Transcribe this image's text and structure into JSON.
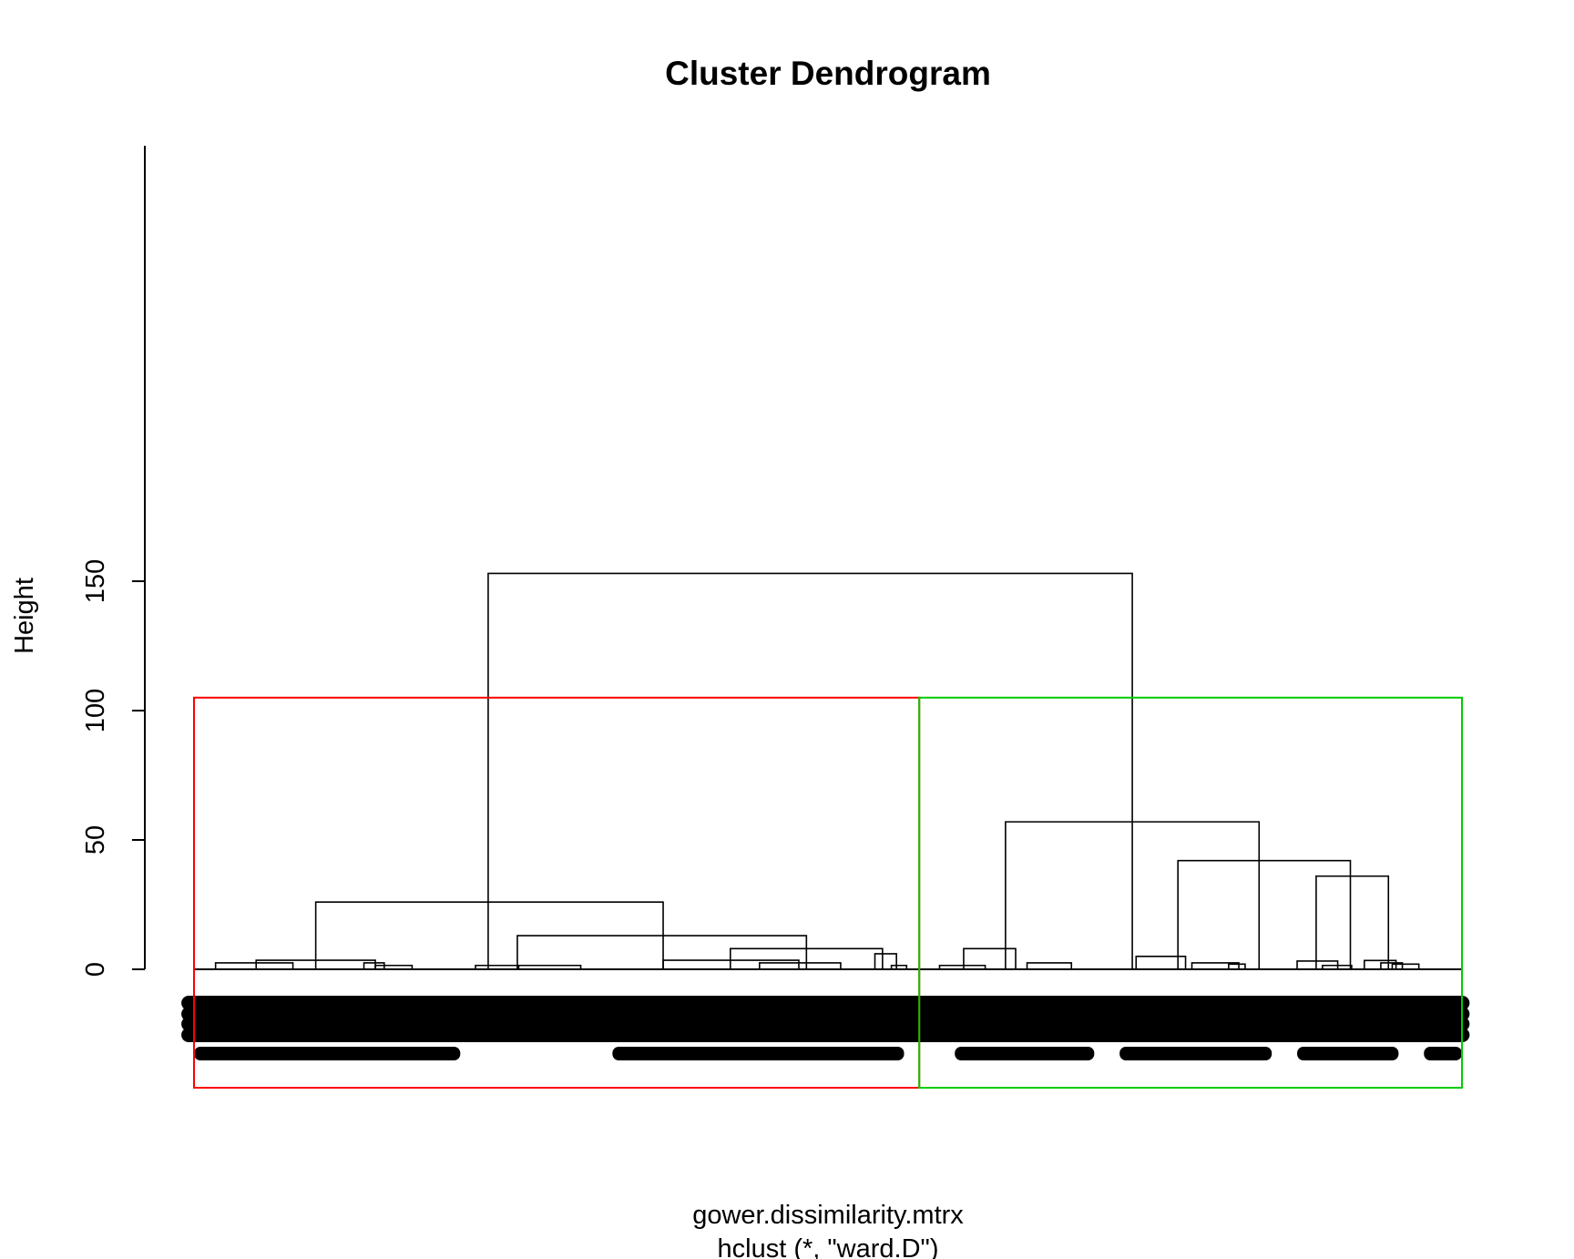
{
  "chart_data": {
    "type": "dendrogram",
    "title": "Cluster Dendrogram",
    "ylabel": "Height",
    "xlabel": "gower.dissimilarity.mtrx",
    "sub": "hclust (*, \"ward.D\")",
    "ylim": [
      0,
      160
    ],
    "yticks": [
      0,
      50,
      100,
      150
    ],
    "cluster_cut_height": 105,
    "cluster_boxes": [
      {
        "x_from": 0,
        "x_to": 0.572,
        "color": "#ff0000"
      },
      {
        "x_from": 0.572,
        "x_to": 1,
        "color": "#00cc00"
      }
    ],
    "merges": [
      {
        "left": 0.232,
        "right": 0.74,
        "height": 153
      },
      {
        "left": 0.096,
        "right": 0.37,
        "height": 26
      },
      {
        "left": 0.255,
        "right": 0.483,
        "height": 13
      },
      {
        "left": 0.423,
        "right": 0.543,
        "height": 8
      },
      {
        "left": 0.37,
        "right": 0.477,
        "height": 3.5
      },
      {
        "left": 0.537,
        "right": 0.554,
        "height": 6
      },
      {
        "left": 0.049,
        "right": 0.143,
        "height": 3.5
      },
      {
        "left": 0.017,
        "right": 0.078,
        "height": 2.5
      },
      {
        "left": 0.134,
        "right": 0.15,
        "height": 2.5
      },
      {
        "left": 0.143,
        "right": 0.172,
        "height": 1.5
      },
      {
        "left": 0.222,
        "right": 0.256,
        "height": 1.5
      },
      {
        "left": 0.256,
        "right": 0.305,
        "height": 1.5
      },
      {
        "left": 0.446,
        "right": 0.51,
        "height": 2.5
      },
      {
        "left": 0.55,
        "right": 0.562,
        "height": 1.5
      },
      {
        "left": 0.64,
        "right": 0.84,
        "height": 57
      },
      {
        "left": 0.607,
        "right": 0.648,
        "height": 8
      },
      {
        "left": 0.776,
        "right": 0.912,
        "height": 42
      },
      {
        "left": 0.885,
        "right": 0.942,
        "height": 36
      },
      {
        "left": 0.743,
        "right": 0.782,
        "height": 5
      },
      {
        "left": 0.787,
        "right": 0.824,
        "height": 2.5
      },
      {
        "left": 0.816,
        "right": 0.829,
        "height": 2
      },
      {
        "left": 0.87,
        "right": 0.902,
        "height": 3.2
      },
      {
        "left": 0.923,
        "right": 0.948,
        "height": 3.4
      },
      {
        "left": 0.936,
        "right": 0.953,
        "height": 2.5
      },
      {
        "left": 0.945,
        "right": 0.966,
        "height": 2
      },
      {
        "left": 0.588,
        "right": 0.624,
        "height": 1.5
      },
      {
        "left": 0.657,
        "right": 0.692,
        "height": 2.5
      },
      {
        "left": 0.89,
        "right": 0.913,
        "height": 1.5
      }
    ]
  }
}
